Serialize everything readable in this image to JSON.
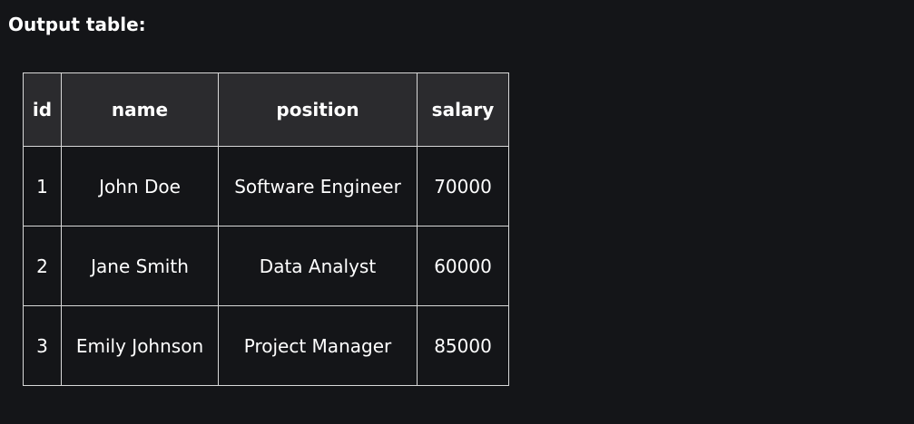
{
  "heading": "Output table:",
  "table": {
    "columns": [
      "id",
      "name",
      "position",
      "salary"
    ],
    "rows": [
      [
        "1",
        "John Doe",
        "Software Engineer",
        "70000"
      ],
      [
        "2",
        "Jane Smith",
        "Data Analyst",
        "60000"
      ],
      [
        "3",
        "Emily Johnson",
        "Project Manager",
        "85000"
      ]
    ]
  },
  "colors": {
    "page_background": "#141518",
    "header_background": "#2b2b2e",
    "border": "#d8d8d8",
    "text": "#ffffff"
  }
}
